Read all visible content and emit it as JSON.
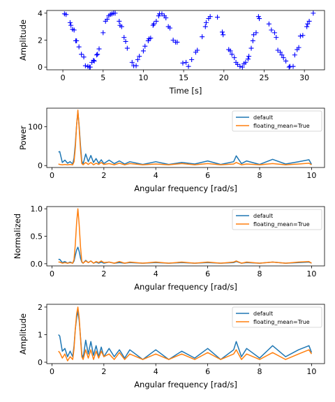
{
  "colors": {
    "default": "#1f77b4",
    "floating": "#ff7f0e",
    "scatter": "#0000ff"
  },
  "chart_data": [
    {
      "id": "signal",
      "type": "scatter",
      "marker": "+",
      "xlabel": "Time [s]",
      "ylabel": "Amplitude",
      "xlim": [
        -2,
        32.5
      ],
      "ylim": [
        -0.2,
        4.2
      ],
      "xticks": [
        0,
        5,
        10,
        15,
        20,
        25,
        30
      ],
      "yticks": [
        0,
        2,
        4
      ],
      "x": [
        0.2,
        0.4,
        0.9,
        1.0,
        1.2,
        1.4,
        1.6,
        1.7,
        2.0,
        2.3,
        2.6,
        2.8,
        3.1,
        3.3,
        3.4,
        3.6,
        3.8,
        3.9,
        4.2,
        4.3,
        4.5,
        5.0,
        5.3,
        5.5,
        5.7,
        5.9,
        6.1,
        6.3,
        6.5,
        7.0,
        7.1,
        7.3,
        7.6,
        7.8,
        8.0,
        8.6,
        8.8,
        9.1,
        9.3,
        9.5,
        10.0,
        10.2,
        10.6,
        10.7,
        10.9,
        11.2,
        11.3,
        11.6,
        11.9,
        12.0,
        12.3,
        12.6,
        12.8,
        13.1,
        13.3,
        13.7,
        14.0,
        14.2,
        14.9,
        15.3,
        15.6,
        16.0,
        16.5,
        16.7,
        17.3,
        17.7,
        17.8,
        18.1,
        18.3,
        19.2,
        19.8,
        19.9,
        20.6,
        20.8,
        21.0,
        21.3,
        21.5,
        21.7,
        22.0,
        22.3,
        22.5,
        22.7,
        23.0,
        23.1,
        23.4,
        23.6,
        23.7,
        24.0,
        24.3,
        24.4,
        25.6,
        25.9,
        26.3,
        26.5,
        26.7,
        27.0,
        27.2,
        27.4,
        27.7,
        28.1,
        28.2,
        28.6,
        28.8,
        29.1,
        29.3,
        29.5,
        29.8,
        30.3,
        30.4,
        30.6,
        31.1
      ],
      "y": [
        3.95,
        3.9,
        3.3,
        3.1,
        2.8,
        2.75,
        1.95,
        1.95,
        1.5,
        0.95,
        0.75,
        0.1,
        0.05,
        0.0,
        0.0,
        0.35,
        0.5,
        0.45,
        0.9,
        0.95,
        1.35,
        2.55,
        3.4,
        3.55,
        3.8,
        3.9,
        3.95,
        4.0,
        4.0,
        3.4,
        3.1,
        3.0,
        2.2,
        1.9,
        1.4,
        0.35,
        0.1,
        0.1,
        0.55,
        0.8,
        1.2,
        1.55,
        1.95,
        2.1,
        2.15,
        3.1,
        3.2,
        3.4,
        3.8,
        3.95,
        3.95,
        3.8,
        3.65,
        3.0,
        2.9,
        2.0,
        1.85,
        1.85,
        0.3,
        0.35,
        0.05,
        0.55,
        1.1,
        1.25,
        2.25,
        3.0,
        3.3,
        3.6,
        3.75,
        3.7,
        2.6,
        2.4,
        1.3,
        1.2,
        0.95,
        0.7,
        0.35,
        0.2,
        0.05,
        0.0,
        0.25,
        0.35,
        0.6,
        0.8,
        1.4,
        1.95,
        2.4,
        2.55,
        3.75,
        3.6,
        3.2,
        2.75,
        2.55,
        2.2,
        1.25,
        1.1,
        0.9,
        0.7,
        0.45,
        0.0,
        0.05,
        0.05,
        0.9,
        1.3,
        1.45,
        2.3,
        2.35,
        3.0,
        3.2,
        3.4,
        4.0
      ]
    },
    {
      "id": "power",
      "type": "line",
      "xlabel": "Angular frequency [rad/s]",
      "ylabel": "Power",
      "xlim": [
        -0.2,
        10.5
      ],
      "ylim": [
        -5,
        148
      ],
      "xticks": [
        0,
        2,
        4,
        6,
        8,
        10
      ],
      "yticks": [
        0,
        100
      ],
      "legend": {
        "position": "upper-right",
        "entries": [
          "default",
          "floating_mean=True"
        ]
      },
      "series": [
        {
          "name": "default",
          "x": [
            0.25,
            0.3,
            0.4,
            0.5,
            0.6,
            0.7,
            0.8,
            0.85,
            0.9,
            0.95,
            1.0,
            1.05,
            1.1,
            1.15,
            1.2,
            1.3,
            1.4,
            1.5,
            1.6,
            1.7,
            1.8,
            1.9,
            2.0,
            2.2,
            2.4,
            2.6,
            2.8,
            3.0,
            3.5,
            4.0,
            4.5,
            5.0,
            5.5,
            6.0,
            6.5,
            7.0,
            7.1,
            7.3,
            7.5,
            8.0,
            8.5,
            9.0,
            9.5,
            9.9,
            10.0
          ],
          "y": [
            35,
            36,
            8,
            14,
            6,
            10,
            4,
            20,
            55,
            105,
            140,
            100,
            50,
            12,
            4,
            30,
            10,
            26,
            8,
            18,
            6,
            15,
            5,
            14,
            5,
            12,
            4,
            10,
            3,
            10,
            3,
            8,
            4,
            12,
            3,
            10,
            25,
            5,
            12,
            3,
            16,
            4,
            10,
            15,
            3
          ]
        },
        {
          "name": "floating_mean=True",
          "x": [
            0.25,
            0.3,
            0.4,
            0.5,
            0.6,
            0.7,
            0.8,
            0.85,
            0.9,
            0.95,
            1.0,
            1.05,
            1.1,
            1.15,
            1.2,
            1.3,
            1.4,
            1.5,
            1.6,
            1.7,
            1.8,
            1.9,
            2.0,
            2.2,
            2.4,
            2.6,
            2.8,
            3.0,
            3.5,
            4.0,
            4.5,
            5.0,
            5.5,
            6.0,
            6.5,
            7.0,
            7.1,
            7.3,
            7.5,
            8.0,
            8.5,
            9.0,
            9.5,
            9.9,
            10.0
          ],
          "y": [
            4,
            3,
            2,
            3,
            2,
            3,
            2,
            10,
            45,
            105,
            143,
            95,
            40,
            5,
            2,
            8,
            3,
            8,
            2,
            6,
            3,
            8,
            3,
            5,
            2,
            6,
            2,
            5,
            2,
            4,
            2,
            5,
            2,
            5,
            2,
            4,
            8,
            2,
            4,
            2,
            5,
            2,
            4,
            6,
            2
          ]
        }
      ]
    },
    {
      "id": "normalized",
      "type": "line",
      "xlabel": "Angular frequency [rad/s]",
      "ylabel": "Normalized",
      "xlim": [
        -0.2,
        10.5
      ],
      "ylim": [
        -0.04,
        1.04
      ],
      "xticks": [
        0,
        2,
        4,
        6,
        8,
        10
      ],
      "yticks": [
        0.0,
        0.5,
        1.0
      ],
      "ytick_labels": [
        "0.0",
        "0.5",
        "1.0"
      ],
      "legend": {
        "position": "upper-right",
        "entries": [
          "default",
          "floating_mean=True"
        ]
      },
      "series": [
        {
          "name": "default",
          "x": [
            0.25,
            0.3,
            0.4,
            0.5,
            0.6,
            0.7,
            0.8,
            0.85,
            0.9,
            0.95,
            1.0,
            1.05,
            1.1,
            1.15,
            1.2,
            1.3,
            1.4,
            1.5,
            1.6,
            1.7,
            1.8,
            1.9,
            2.0,
            2.2,
            2.4,
            2.6,
            2.8,
            3.0,
            3.5,
            4.0,
            4.5,
            5.0,
            5.5,
            6.0,
            6.5,
            7.0,
            7.1,
            7.3,
            7.5,
            8.0,
            8.5,
            9.0,
            9.5,
            9.9,
            10.0
          ],
          "y": [
            0.08,
            0.08,
            0.02,
            0.04,
            0.01,
            0.03,
            0.01,
            0.05,
            0.15,
            0.25,
            0.3,
            0.22,
            0.1,
            0.03,
            0.01,
            0.06,
            0.02,
            0.05,
            0.01,
            0.03,
            0.01,
            0.03,
            0.01,
            0.03,
            0.01,
            0.02,
            0.01,
            0.02,
            0.01,
            0.02,
            0.01,
            0.02,
            0.01,
            0.02,
            0.01,
            0.02,
            0.04,
            0.01,
            0.02,
            0.01,
            0.03,
            0.01,
            0.02,
            0.03,
            0.01
          ]
        },
        {
          "name": "floating_mean=True",
          "x": [
            0.25,
            0.3,
            0.4,
            0.5,
            0.6,
            0.7,
            0.8,
            0.85,
            0.9,
            0.95,
            1.0,
            1.05,
            1.1,
            1.15,
            1.2,
            1.3,
            1.4,
            1.5,
            1.6,
            1.7,
            1.8,
            1.9,
            2.0,
            2.2,
            2.4,
            2.6,
            2.8,
            3.0,
            3.5,
            4.0,
            4.5,
            5.0,
            5.5,
            6.0,
            6.5,
            7.0,
            7.1,
            7.3,
            7.5,
            8.0,
            8.5,
            9.0,
            9.5,
            9.9,
            10.0
          ],
          "y": [
            0.03,
            0.03,
            0.01,
            0.02,
            0.01,
            0.02,
            0.01,
            0.08,
            0.35,
            0.75,
            1.0,
            0.7,
            0.3,
            0.04,
            0.01,
            0.05,
            0.02,
            0.05,
            0.01,
            0.04,
            0.02,
            0.05,
            0.02,
            0.03,
            0.01,
            0.04,
            0.01,
            0.03,
            0.01,
            0.03,
            0.01,
            0.03,
            0.01,
            0.03,
            0.01,
            0.03,
            0.05,
            0.01,
            0.03,
            0.01,
            0.03,
            0.01,
            0.03,
            0.04,
            0.01
          ]
        }
      ]
    },
    {
      "id": "amplitude",
      "type": "line",
      "xlabel": "Angular frequency [rad/s]",
      "ylabel": "Amplitude",
      "xlim": [
        -0.2,
        10.5
      ],
      "ylim": [
        -0.05,
        2.1
      ],
      "xticks": [
        0,
        2,
        4,
        6,
        8,
        10
      ],
      "yticks": [
        0,
        1,
        2
      ],
      "legend": {
        "position": "upper-right",
        "entries": [
          "default",
          "floating_mean=True"
        ]
      },
      "series": [
        {
          "name": "default",
          "x": [
            0.25,
            0.3,
            0.4,
            0.5,
            0.6,
            0.7,
            0.8,
            0.85,
            0.9,
            0.95,
            1.0,
            1.05,
            1.1,
            1.15,
            1.2,
            1.3,
            1.4,
            1.5,
            1.6,
            1.7,
            1.8,
            1.9,
            2.0,
            2.2,
            2.4,
            2.6,
            2.8,
            3.0,
            3.5,
            4.0,
            4.5,
            5.0,
            5.5,
            6.0,
            6.5,
            7.0,
            7.1,
            7.3,
            7.5,
            8.0,
            8.5,
            9.0,
            9.5,
            9.9,
            10.0
          ],
          "y": [
            1.0,
            0.95,
            0.4,
            0.5,
            0.2,
            0.4,
            0.2,
            0.6,
            1.2,
            1.6,
            1.85,
            1.5,
            0.9,
            0.3,
            0.15,
            0.8,
            0.3,
            0.75,
            0.25,
            0.6,
            0.2,
            0.55,
            0.2,
            0.5,
            0.2,
            0.45,
            0.15,
            0.45,
            0.1,
            0.45,
            0.1,
            0.4,
            0.15,
            0.5,
            0.1,
            0.45,
            0.75,
            0.2,
            0.5,
            0.15,
            0.6,
            0.2,
            0.45,
            0.6,
            0.35
          ]
        },
        {
          "name": "floating_mean=True",
          "x": [
            0.25,
            0.3,
            0.4,
            0.5,
            0.6,
            0.7,
            0.8,
            0.85,
            0.9,
            0.95,
            1.0,
            1.05,
            1.1,
            1.15,
            1.2,
            1.3,
            1.4,
            1.5,
            1.6,
            1.7,
            1.8,
            1.9,
            2.0,
            2.2,
            2.4,
            2.6,
            2.8,
            3.0,
            3.5,
            4.0,
            4.5,
            5.0,
            5.5,
            6.0,
            6.5,
            7.0,
            7.1,
            7.3,
            7.5,
            8.0,
            8.5,
            9.0,
            9.5,
            9.9,
            10.0
          ],
          "y": [
            0.4,
            0.35,
            0.15,
            0.3,
            0.05,
            0.2,
            0.1,
            0.5,
            1.2,
            1.75,
            2.0,
            1.6,
            0.85,
            0.2,
            0.1,
            0.45,
            0.15,
            0.45,
            0.1,
            0.4,
            0.15,
            0.4,
            0.2,
            0.3,
            0.1,
            0.35,
            0.1,
            0.3,
            0.1,
            0.3,
            0.1,
            0.3,
            0.1,
            0.35,
            0.1,
            0.3,
            0.45,
            0.1,
            0.3,
            0.1,
            0.35,
            0.1,
            0.3,
            0.45,
            0.3
          ]
        }
      ]
    }
  ]
}
